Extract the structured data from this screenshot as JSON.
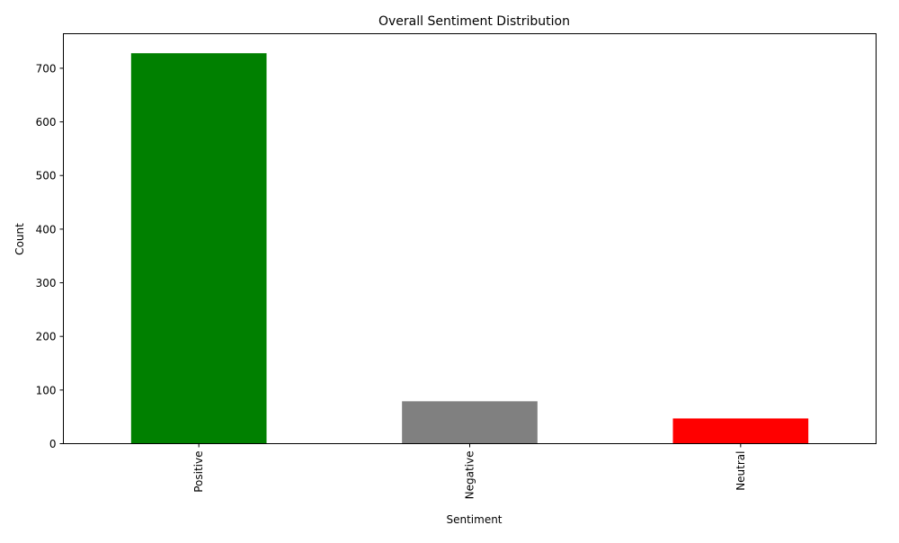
{
  "chart_data": {
    "type": "bar",
    "title": "Overall Sentiment Distribution",
    "xlabel": "Sentiment",
    "ylabel": "Count",
    "categories": [
      "Positive",
      "Negative",
      "Neutral"
    ],
    "values": [
      728,
      79,
      47
    ],
    "colors": [
      "#008000",
      "#808080",
      "#ff0000"
    ],
    "ylim": [
      0,
      764.4
    ],
    "yticks": [
      0,
      100,
      200,
      300,
      400,
      500,
      600,
      700
    ],
    "grid": false,
    "legend": "none"
  }
}
